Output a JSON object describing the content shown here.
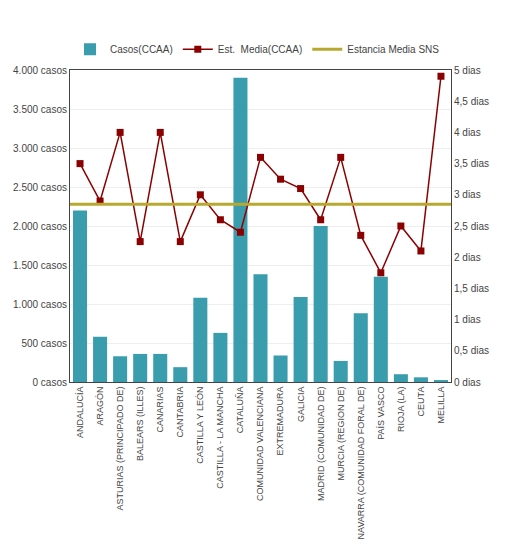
{
  "chart_data": {
    "type": "bar",
    "categories": [
      "ANDALUCÍA",
      "ARAGÓN",
      "ASTURIAS (PRINCIPADO DE)",
      "BALEARS (ILLES)",
      "CANARIAS",
      "CANTABRIA",
      "CASTILLA Y LEÓN",
      "CASTILLA - LA MANCHA",
      "CATALUÑA",
      "COMUNIDAD VALENCIANA",
      "EXTREMADURA",
      "GALICIA",
      "MADRID (COMUNIDAD DE)",
      "MURCIA (REGION DE)",
      "NAVARRA (COMUNIDAD FORAL DE)",
      "PAÍS VASCO",
      "RIOJA (LA)",
      "CEUTA",
      "MELILLA"
    ],
    "series": [
      {
        "name": "Casos(CCAA)",
        "type": "bar",
        "color": "#3a9dad",
        "values": [
          2200,
          580,
          330,
          360,
          360,
          190,
          1080,
          630,
          3900,
          1380,
          340,
          1090,
          2000,
          270,
          880,
          1350,
          100,
          60,
          25
        ]
      },
      {
        "name": "Est.  Media(CCAA)",
        "type": "line",
        "axis": "y2",
        "color": "#8B0000",
        "marker": "square",
        "values": [
          3.5,
          2.9,
          4.0,
          2.25,
          4.0,
          2.25,
          3.0,
          2.6,
          2.4,
          3.6,
          3.25,
          3.1,
          2.6,
          3.6,
          2.35,
          1.75,
          2.5,
          2.1,
          4.9
        ]
      },
      {
        "name": "Estancia Media SNS",
        "type": "hline",
        "axis": "y2",
        "color": "#B8A830",
        "value": 2.85
      }
    ],
    "ylim": [
      0,
      4000
    ],
    "yticks": [
      {
        "value": 0,
        "label": "0 casos"
      },
      {
        "value": 500,
        "label": "500 casos"
      },
      {
        "value": 1000,
        "label": "1.000 casos"
      },
      {
        "value": 1500,
        "label": "1.500 casos"
      },
      {
        "value": 2000,
        "label": "2.000 casos"
      },
      {
        "value": 2500,
        "label": "2.500 casos"
      },
      {
        "value": 3000,
        "label": "3.000 casos"
      },
      {
        "value": 3500,
        "label": "3.500 casos"
      },
      {
        "value": 4000,
        "label": "4.000 casos"
      }
    ],
    "y2lim": [
      0,
      5.0
    ],
    "y2ticks": [
      {
        "value": 0,
        "label": "0 dias"
      },
      {
        "value": 0.5,
        "label": "0,5 dias"
      },
      {
        "value": 1.0,
        "label": "1 dias"
      },
      {
        "value": 1.5,
        "label": "1,5 dias"
      },
      {
        "value": 2.0,
        "label": "2 dias"
      },
      {
        "value": 2.5,
        "label": "2,5 dias"
      },
      {
        "value": 3.0,
        "label": "3 dias"
      },
      {
        "value": 3.5,
        "label": "3,5 dias"
      },
      {
        "value": 4.0,
        "label": "4 dias"
      },
      {
        "value": 4.5,
        "label": "4,5 dias"
      },
      {
        "value": 5.0,
        "label": "5 dias"
      }
    ],
    "grid": true,
    "legend": "top"
  }
}
